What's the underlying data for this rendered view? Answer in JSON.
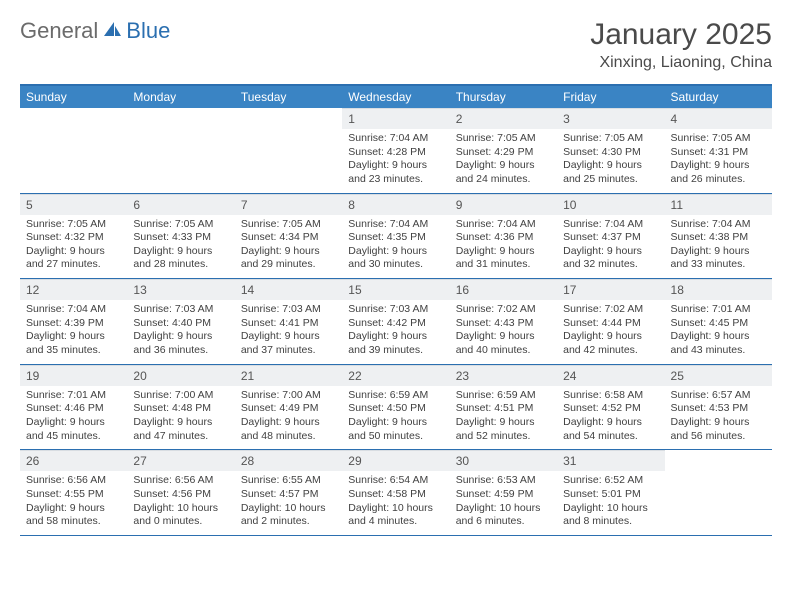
{
  "logo": {
    "text1": "General",
    "text2": "Blue"
  },
  "title": "January 2025",
  "subtitle": "Xinxing, Liaoning, China",
  "colors": {
    "header_bg": "#3a84c4",
    "header_text": "#ffffff",
    "border": "#2b6fb0",
    "daynum_bg": "#eef0f2",
    "text": "#414141"
  },
  "dayHeaders": [
    "Sunday",
    "Monday",
    "Tuesday",
    "Wednesday",
    "Thursday",
    "Friday",
    "Saturday"
  ],
  "weeks": [
    [
      {
        "num": "",
        "sunrise": "",
        "sunset": "",
        "daylight": ""
      },
      {
        "num": "",
        "sunrise": "",
        "sunset": "",
        "daylight": ""
      },
      {
        "num": "",
        "sunrise": "",
        "sunset": "",
        "daylight": ""
      },
      {
        "num": "1",
        "sunrise": "Sunrise: 7:04 AM",
        "sunset": "Sunset: 4:28 PM",
        "daylight": "Daylight: 9 hours and 23 minutes."
      },
      {
        "num": "2",
        "sunrise": "Sunrise: 7:05 AM",
        "sunset": "Sunset: 4:29 PM",
        "daylight": "Daylight: 9 hours and 24 minutes."
      },
      {
        "num": "3",
        "sunrise": "Sunrise: 7:05 AM",
        "sunset": "Sunset: 4:30 PM",
        "daylight": "Daylight: 9 hours and 25 minutes."
      },
      {
        "num": "4",
        "sunrise": "Sunrise: 7:05 AM",
        "sunset": "Sunset: 4:31 PM",
        "daylight": "Daylight: 9 hours and 26 minutes."
      }
    ],
    [
      {
        "num": "5",
        "sunrise": "Sunrise: 7:05 AM",
        "sunset": "Sunset: 4:32 PM",
        "daylight": "Daylight: 9 hours and 27 minutes."
      },
      {
        "num": "6",
        "sunrise": "Sunrise: 7:05 AM",
        "sunset": "Sunset: 4:33 PM",
        "daylight": "Daylight: 9 hours and 28 minutes."
      },
      {
        "num": "7",
        "sunrise": "Sunrise: 7:05 AM",
        "sunset": "Sunset: 4:34 PM",
        "daylight": "Daylight: 9 hours and 29 minutes."
      },
      {
        "num": "8",
        "sunrise": "Sunrise: 7:04 AM",
        "sunset": "Sunset: 4:35 PM",
        "daylight": "Daylight: 9 hours and 30 minutes."
      },
      {
        "num": "9",
        "sunrise": "Sunrise: 7:04 AM",
        "sunset": "Sunset: 4:36 PM",
        "daylight": "Daylight: 9 hours and 31 minutes."
      },
      {
        "num": "10",
        "sunrise": "Sunrise: 7:04 AM",
        "sunset": "Sunset: 4:37 PM",
        "daylight": "Daylight: 9 hours and 32 minutes."
      },
      {
        "num": "11",
        "sunrise": "Sunrise: 7:04 AM",
        "sunset": "Sunset: 4:38 PM",
        "daylight": "Daylight: 9 hours and 33 minutes."
      }
    ],
    [
      {
        "num": "12",
        "sunrise": "Sunrise: 7:04 AM",
        "sunset": "Sunset: 4:39 PM",
        "daylight": "Daylight: 9 hours and 35 minutes."
      },
      {
        "num": "13",
        "sunrise": "Sunrise: 7:03 AM",
        "sunset": "Sunset: 4:40 PM",
        "daylight": "Daylight: 9 hours and 36 minutes."
      },
      {
        "num": "14",
        "sunrise": "Sunrise: 7:03 AM",
        "sunset": "Sunset: 4:41 PM",
        "daylight": "Daylight: 9 hours and 37 minutes."
      },
      {
        "num": "15",
        "sunrise": "Sunrise: 7:03 AM",
        "sunset": "Sunset: 4:42 PM",
        "daylight": "Daylight: 9 hours and 39 minutes."
      },
      {
        "num": "16",
        "sunrise": "Sunrise: 7:02 AM",
        "sunset": "Sunset: 4:43 PM",
        "daylight": "Daylight: 9 hours and 40 minutes."
      },
      {
        "num": "17",
        "sunrise": "Sunrise: 7:02 AM",
        "sunset": "Sunset: 4:44 PM",
        "daylight": "Daylight: 9 hours and 42 minutes."
      },
      {
        "num": "18",
        "sunrise": "Sunrise: 7:01 AM",
        "sunset": "Sunset: 4:45 PM",
        "daylight": "Daylight: 9 hours and 43 minutes."
      }
    ],
    [
      {
        "num": "19",
        "sunrise": "Sunrise: 7:01 AM",
        "sunset": "Sunset: 4:46 PM",
        "daylight": "Daylight: 9 hours and 45 minutes."
      },
      {
        "num": "20",
        "sunrise": "Sunrise: 7:00 AM",
        "sunset": "Sunset: 4:48 PM",
        "daylight": "Daylight: 9 hours and 47 minutes."
      },
      {
        "num": "21",
        "sunrise": "Sunrise: 7:00 AM",
        "sunset": "Sunset: 4:49 PM",
        "daylight": "Daylight: 9 hours and 48 minutes."
      },
      {
        "num": "22",
        "sunrise": "Sunrise: 6:59 AM",
        "sunset": "Sunset: 4:50 PM",
        "daylight": "Daylight: 9 hours and 50 minutes."
      },
      {
        "num": "23",
        "sunrise": "Sunrise: 6:59 AM",
        "sunset": "Sunset: 4:51 PM",
        "daylight": "Daylight: 9 hours and 52 minutes."
      },
      {
        "num": "24",
        "sunrise": "Sunrise: 6:58 AM",
        "sunset": "Sunset: 4:52 PM",
        "daylight": "Daylight: 9 hours and 54 minutes."
      },
      {
        "num": "25",
        "sunrise": "Sunrise: 6:57 AM",
        "sunset": "Sunset: 4:53 PM",
        "daylight": "Daylight: 9 hours and 56 minutes."
      }
    ],
    [
      {
        "num": "26",
        "sunrise": "Sunrise: 6:56 AM",
        "sunset": "Sunset: 4:55 PM",
        "daylight": "Daylight: 9 hours and 58 minutes."
      },
      {
        "num": "27",
        "sunrise": "Sunrise: 6:56 AM",
        "sunset": "Sunset: 4:56 PM",
        "daylight": "Daylight: 10 hours and 0 minutes."
      },
      {
        "num": "28",
        "sunrise": "Sunrise: 6:55 AM",
        "sunset": "Sunset: 4:57 PM",
        "daylight": "Daylight: 10 hours and 2 minutes."
      },
      {
        "num": "29",
        "sunrise": "Sunrise: 6:54 AM",
        "sunset": "Sunset: 4:58 PM",
        "daylight": "Daylight: 10 hours and 4 minutes."
      },
      {
        "num": "30",
        "sunrise": "Sunrise: 6:53 AM",
        "sunset": "Sunset: 4:59 PM",
        "daylight": "Daylight: 10 hours and 6 minutes."
      },
      {
        "num": "31",
        "sunrise": "Sunrise: 6:52 AM",
        "sunset": "Sunset: 5:01 PM",
        "daylight": "Daylight: 10 hours and 8 minutes."
      },
      {
        "num": "",
        "sunrise": "",
        "sunset": "",
        "daylight": ""
      }
    ]
  ]
}
